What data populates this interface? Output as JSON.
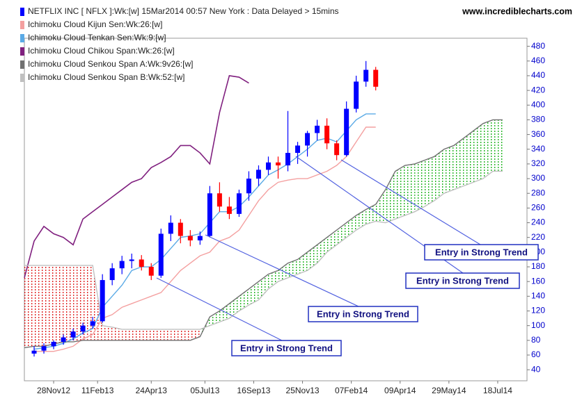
{
  "chart_data": {
    "type": "candlestick",
    "title": "NETFLIX INC [ NFLX ]:Wk:[w]  15Mar2014 00:57 New York : Data Delayed > 15mins",
    "source": "www.incrediblecharts.com",
    "x": [
      0,
      2,
      4,
      6,
      8,
      10,
      12,
      14,
      16,
      18,
      20,
      22,
      24,
      26,
      28,
      30,
      32,
      34,
      36,
      38,
      40,
      42,
      44,
      46,
      48,
      50,
      52,
      54,
      56,
      58,
      60,
      62,
      64,
      66,
      68,
      70,
      72,
      74,
      76,
      78,
      80,
      82,
      84,
      86,
      88,
      90,
      92,
      94,
      96,
      98
    ],
    "candles": {
      "up_color": "#0000ff",
      "down_color": "#ff0000",
      "legend_color": "#0000ff",
      "open": [
        null,
        62,
        66,
        72,
        78,
        84,
        92,
        100,
        106,
        162,
        178,
        188,
        190,
        180,
        168,
        225,
        240,
        222,
        216,
        222,
        280,
        262,
        252,
        280,
        300,
        312,
        322,
        318,
        335,
        345,
        362,
        372,
        348,
        332,
        395,
        432,
        448,
        null,
        null,
        null,
        null,
        null,
        null,
        null,
        null,
        null,
        null,
        null,
        null,
        null
      ],
      "high": [
        null,
        72,
        76,
        80,
        88,
        96,
        104,
        112,
        170,
        185,
        195,
        198,
        196,
        185,
        232,
        250,
        245,
        230,
        228,
        290,
        295,
        275,
        285,
        310,
        318,
        330,
        330,
        392,
        350,
        365,
        380,
        382,
        352,
        405,
        440,
        460,
        452,
        null,
        null,
        null,
        null,
        null,
        null,
        null,
        null,
        null,
        null,
        null,
        null,
        null
      ],
      "low": [
        null,
        58,
        62,
        68,
        74,
        80,
        88,
        96,
        104,
        155,
        170,
        178,
        175,
        162,
        165,
        215,
        212,
        208,
        210,
        220,
        255,
        245,
        248,
        270,
        290,
        305,
        300,
        310,
        320,
        330,
        352,
        340,
        325,
        330,
        390,
        425,
        420,
        null,
        null,
        null,
        null,
        null,
        null,
        null,
        null,
        null,
        null,
        null,
        null,
        null
      ],
      "close": [
        null,
        66,
        72,
        78,
        84,
        92,
        100,
        106,
        162,
        178,
        188,
        190,
        180,
        168,
        225,
        240,
        222,
        216,
        222,
        280,
        262,
        252,
        280,
        300,
        312,
        322,
        318,
        335,
        345,
        362,
        372,
        348,
        332,
        395,
        432,
        448,
        425,
        null,
        null,
        null,
        null,
        null,
        null,
        null,
        null,
        null,
        null,
        null,
        null,
        null
      ]
    },
    "series": [
      {
        "name": "Ichimoku Cloud Kijun Sen:Wk:26:[w]",
        "color": "#f4a0a0",
        "values": [
          null,
          65,
          65,
          65,
          68,
          72,
          82,
          88,
          110,
          115,
          125,
          130,
          135,
          140,
          145,
          160,
          175,
          185,
          195,
          200,
          215,
          220,
          230,
          250,
          270,
          285,
          295,
          298,
          300,
          300,
          305,
          310,
          318,
          330,
          350,
          370,
          370,
          null,
          null,
          null,
          null,
          null,
          null,
          null,
          null,
          null,
          null,
          null,
          null,
          null
        ]
      },
      {
        "name": "Ichimoku Cloud Tenkan Sen:Wk:9:[w]",
        "color": "#5aaae6",
        "values": [
          null,
          68,
          70,
          72,
          76,
          82,
          90,
          96,
          125,
          140,
          155,
          175,
          180,
          180,
          190,
          205,
          220,
          222,
          225,
          240,
          255,
          255,
          262,
          275,
          290,
          305,
          312,
          320,
          330,
          340,
          352,
          355,
          350,
          365,
          380,
          388,
          388,
          null,
          null,
          null,
          null,
          null,
          null,
          null,
          null,
          null,
          null,
          null,
          null,
          null
        ]
      },
      {
        "name": "Ichimoku Cloud Chikou Span:Wk:26:[w]",
        "color": "#80207f",
        "values": [
          165,
          215,
          235,
          225,
          220,
          210,
          245,
          255,
          265,
          275,
          285,
          295,
          300,
          315,
          322,
          330,
          345,
          345,
          335,
          320,
          390,
          440,
          438,
          430,
          null,
          null,
          null,
          null,
          null,
          null,
          null,
          null,
          null,
          null,
          null,
          null,
          null,
          null,
          null,
          null,
          null,
          null,
          null,
          null,
          null,
          null,
          null,
          null,
          null,
          null
        ]
      },
      {
        "name": "Ichimoku Cloud Senkou Span A:Wk:9v26:[w]",
        "color": "#707070",
        "values": [
          70,
          72,
          72,
          75,
          78,
          78,
          80,
          80,
          80,
          80,
          80,
          80,
          80,
          80,
          80,
          80,
          80,
          80,
          85,
          112,
          120,
          130,
          140,
          150,
          160,
          170,
          175,
          185,
          190,
          200,
          210,
          220,
          230,
          240,
          250,
          258,
          265,
          285,
          310,
          318,
          320,
          325,
          330,
          340,
          345,
          355,
          365,
          375,
          380,
          380
        ]
      },
      {
        "name": "Ichimoku Cloud Senkou Span B:Wk:52:[w]",
        "color": "#c0c0c0",
        "values": [
          182,
          182,
          182,
          182,
          182,
          182,
          182,
          182,
          100,
          98,
          95,
          95,
          95,
          95,
          95,
          95,
          95,
          95,
          95,
          100,
          105,
          110,
          120,
          128,
          135,
          150,
          160,
          165,
          170,
          175,
          185,
          200,
          210,
          220,
          230,
          238,
          242,
          240,
          245,
          250,
          255,
          262,
          270,
          280,
          285,
          290,
          295,
          300,
          310,
          310
        ]
      }
    ],
    "cloud_up_color": "#22b522",
    "cloud_down_color": "#e02020",
    "xlim": [
      0,
      103
    ],
    "xticks": [
      {
        "value": 6,
        "label": "28Nov12"
      },
      {
        "value": 15,
        "label": "11Feb13"
      },
      {
        "value": 26,
        "label": "24Apr13"
      },
      {
        "value": 37,
        "label": "05Jul13"
      },
      {
        "value": 47,
        "label": "16Sep13"
      },
      {
        "value": 57,
        "label": "25Nov13"
      },
      {
        "value": 67,
        "label": "07Feb14"
      },
      {
        "value": 77,
        "label": "09Apr14"
      },
      {
        "value": 87,
        "label": "29May14"
      },
      {
        "value": 97,
        "label": "18Jul14"
      }
    ],
    "ylim": [
      25,
      491
    ],
    "yticks": [
      40,
      60,
      80,
      100,
      120,
      140,
      160,
      180,
      200,
      220,
      240,
      260,
      280,
      300,
      320,
      340,
      360,
      380,
      400,
      420,
      440,
      460,
      480
    ],
    "grid": false,
    "annotations": [
      "Entry in Strong Trend",
      "Entry in Strong Trend",
      "Entry in Strong Trend",
      "Entry in Strong Trend"
    ]
  }
}
